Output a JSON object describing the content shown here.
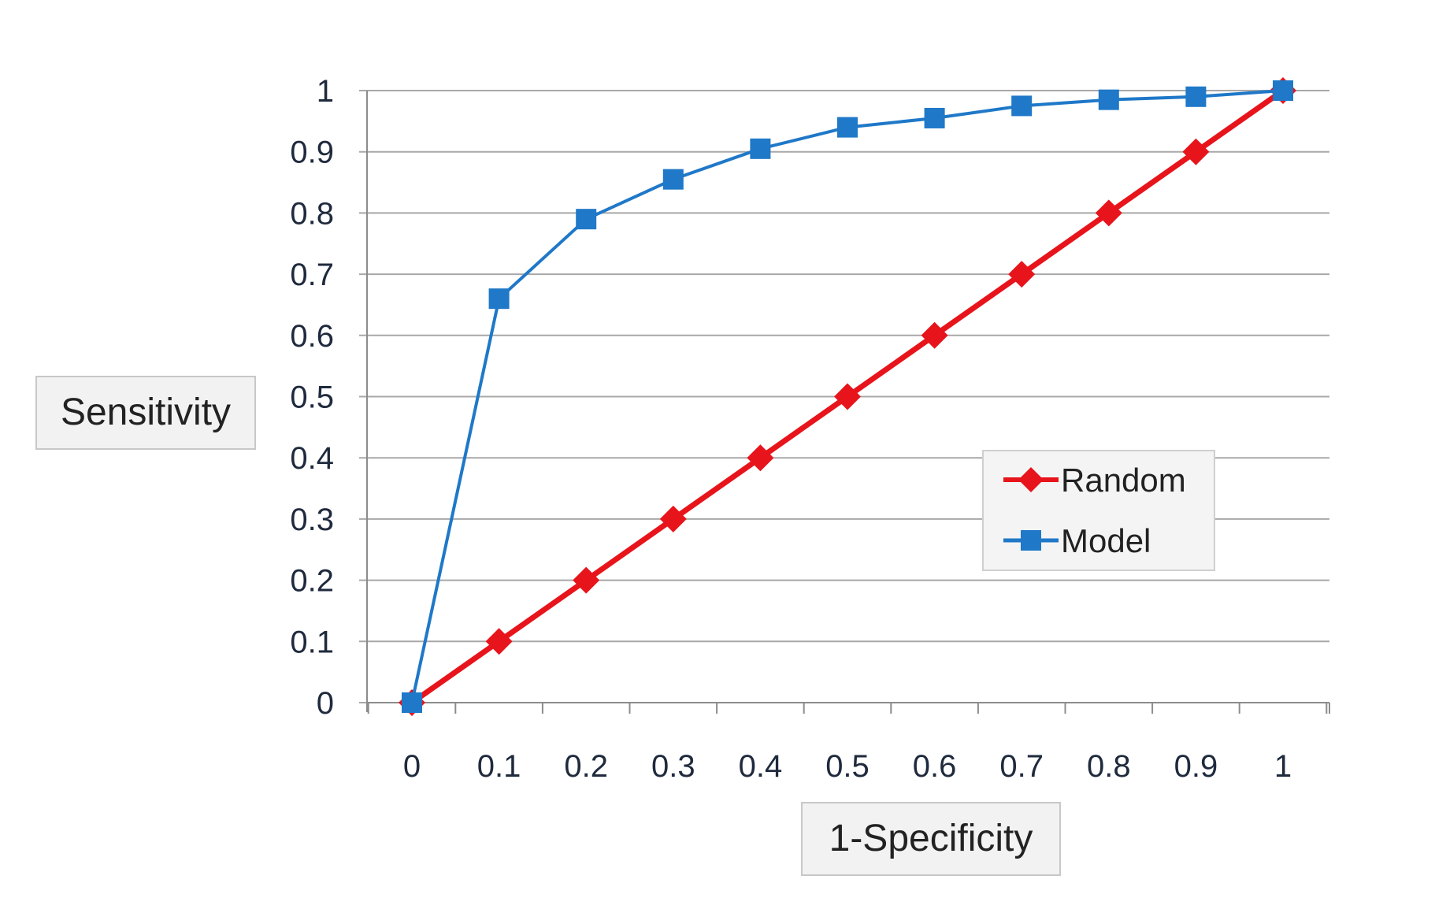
{
  "chart_data": {
    "type": "line",
    "xlabel": "1-Specificity",
    "ylabel": "Sensitivity",
    "x": [
      0,
      0.1,
      0.2,
      0.3,
      0.4,
      0.5,
      0.6,
      0.7,
      0.8,
      0.9,
      1
    ],
    "x_tick_labels": [
      "0",
      "0.1",
      "0.2",
      "0.3",
      "0.4",
      "0.5",
      "0.6",
      "0.7",
      "0.8",
      "0.9",
      "1"
    ],
    "y_tick_labels": [
      "0",
      "0.1",
      "0.2",
      "0.3",
      "0.4",
      "0.5",
      "0.6",
      "0.7",
      "0.8",
      "0.9",
      "1"
    ],
    "xlim": [
      0,
      1
    ],
    "ylim": [
      0,
      1
    ],
    "grid": "horizontal",
    "legend_position": "lower-right",
    "series": [
      {
        "name": "Random",
        "color": "#e8141b",
        "marker": "diamond",
        "values": [
          0,
          0.1,
          0.2,
          0.3,
          0.4,
          0.5,
          0.6,
          0.7,
          0.8,
          0.9,
          1
        ]
      },
      {
        "name": "Model",
        "color": "#1f78c8",
        "marker": "square",
        "values": [
          0,
          0.66,
          0.79,
          0.855,
          0.905,
          0.94,
          0.955,
          0.975,
          0.985,
          0.99,
          1
        ]
      }
    ]
  }
}
